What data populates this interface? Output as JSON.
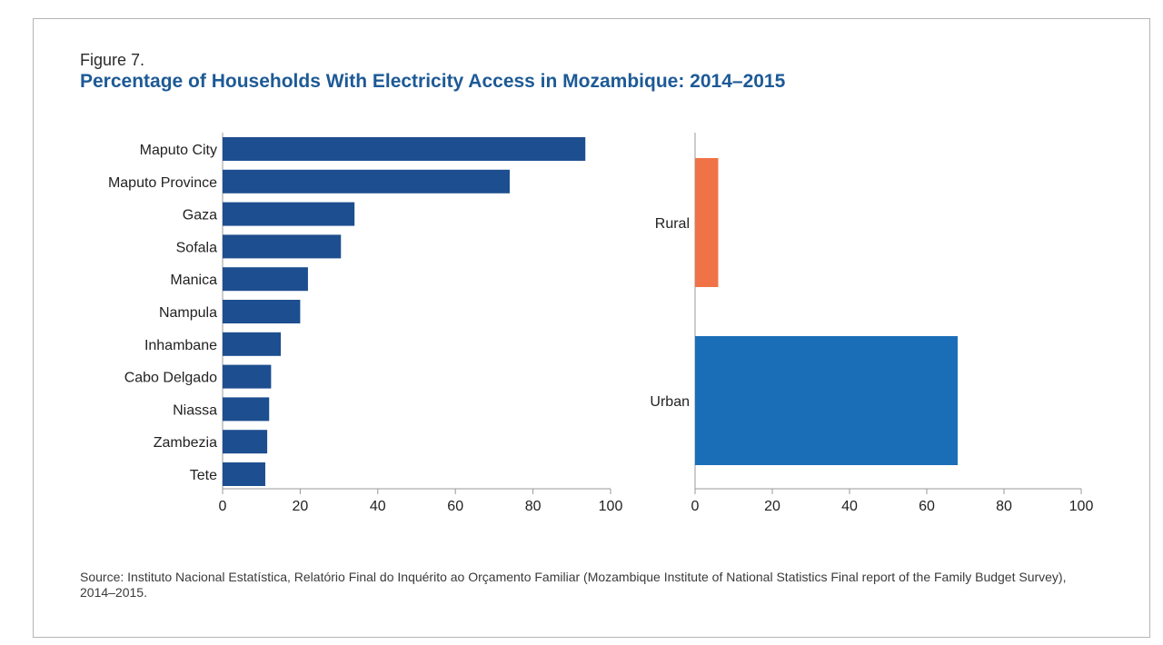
{
  "figure_label": "Figure 7.",
  "title": "Percentage of Households With Electricity Access in Mozambique: 2014–2015",
  "source": "Source: Instituto Nacional Estatística, Relatório Final do Inquérito ao Orçamento Familiar (Mozambique Institute of National Statistics Final report of the Family Budget Survey), 2014–2015.",
  "colors": {
    "province_bar": "#1d4e8f",
    "rural_bar": "#f07347",
    "urban_bar": "#1a6eb8",
    "axis": "#999999",
    "text": "#222222"
  },
  "chart_data": [
    {
      "type": "bar",
      "orientation": "horizontal",
      "categories": [
        "Maputo City",
        "Maputo Province",
        "Gaza",
        "Sofala",
        "Manica",
        "Nampula",
        "Inhambane",
        "Cabo Delgado",
        "Niassa",
        "Zambezia",
        "Tete"
      ],
      "values": [
        93.5,
        74,
        34,
        30.5,
        22,
        20,
        15,
        12.5,
        12,
        11.5,
        11
      ],
      "xlim": [
        0,
        100
      ],
      "xticks": [
        0,
        20,
        40,
        60,
        80,
        100
      ],
      "grid": false
    },
    {
      "type": "bar",
      "orientation": "horizontal",
      "categories": [
        "Rural",
        "Urban"
      ],
      "values": [
        6,
        68
      ],
      "colors": [
        "#f07347",
        "#1a6eb8"
      ],
      "xlim": [
        0,
        100
      ],
      "xticks": [
        0,
        20,
        40,
        60,
        80,
        100
      ],
      "grid": false
    }
  ]
}
